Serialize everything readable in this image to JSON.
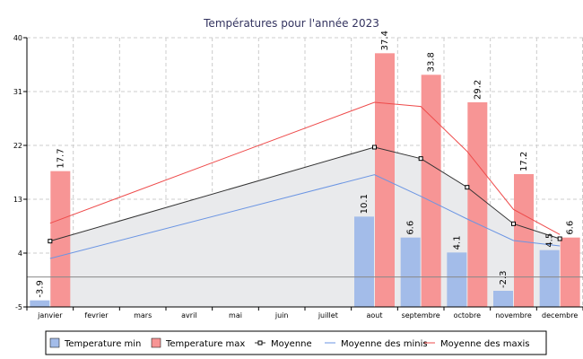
{
  "chart_data": {
    "type": "bar",
    "title": "Températures pour l'année 2023",
    "categories": [
      "janvier",
      "fevrier",
      "mars",
      "avril",
      "mai",
      "juin",
      "juillet",
      "aout",
      "septembre",
      "octobre",
      "novembre",
      "decembre"
    ],
    "ylim": [
      -5,
      40
    ],
    "yticks": [
      -5,
      4,
      13,
      22,
      31,
      40
    ],
    "grid": true,
    "legend_position": "bottom",
    "bar_series": [
      {
        "name": "Temperature min",
        "color": "#a3bce9",
        "values": [
          -3.9,
          null,
          null,
          null,
          null,
          null,
          null,
          10.1,
          6.6,
          4.1,
          -2.3,
          4.5
        ],
        "labels": [
          "-3.9",
          "",
          "",
          "",
          "",
          "",
          "",
          "10.1",
          "6.6",
          "4.1",
          "-2.3",
          "4.5"
        ]
      },
      {
        "name": "Temperature max",
        "color": "#f79595",
        "values": [
          17.7,
          null,
          null,
          null,
          null,
          null,
          null,
          37.4,
          33.8,
          29.2,
          17.2,
          6.6
        ],
        "labels": [
          "17.7",
          "",
          "",
          "",
          "",
          "",
          "",
          "37.4",
          "33.8",
          "29.2",
          "17.2",
          "6.6"
        ]
      }
    ],
    "line_series": [
      {
        "name": "Moyenne",
        "color": "#333333",
        "marker": "square",
        "fill_area": true,
        "fill_color": "#e9eaec",
        "points": [
          [
            0,
            6.0
          ],
          [
            7,
            21.7
          ],
          [
            8,
            19.8
          ],
          [
            9,
            15.0
          ],
          [
            10,
            8.9
          ],
          [
            11,
            6.4
          ]
        ]
      },
      {
        "name": "Moyenne des minis",
        "color": "#6b95e3",
        "points": [
          [
            0,
            3.1
          ],
          [
            7,
            17.1
          ],
          [
            8,
            13.5
          ],
          [
            9,
            9.7
          ],
          [
            10,
            6.1
          ],
          [
            11,
            5.2
          ]
        ]
      },
      {
        "name": "Moyenne des maxis",
        "color": "#ee4b4b",
        "points": [
          [
            0,
            9.0
          ],
          [
            7,
            29.2
          ],
          [
            8,
            28.5
          ],
          [
            9,
            21.0
          ],
          [
            10,
            11.3
          ],
          [
            11,
            7.1
          ]
        ]
      }
    ],
    "baseline": 0
  },
  "legend": [
    {
      "name": "Temperature min",
      "kind": "box",
      "color": "#a3bce9"
    },
    {
      "name": "Temperature max",
      "kind": "box",
      "color": "#f79595"
    },
    {
      "name": "Moyenne",
      "kind": "line-marker",
      "color": "#333333"
    },
    {
      "name": "Moyenne des minis",
      "kind": "line",
      "color": "#6b95e3"
    },
    {
      "name": "Moyenne des maxis",
      "kind": "line",
      "color": "#ee4b4b"
    }
  ]
}
